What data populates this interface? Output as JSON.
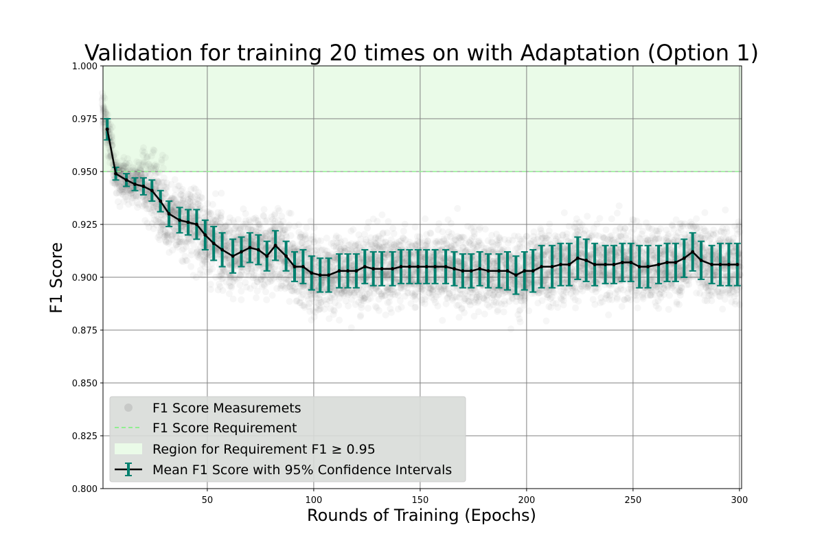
{
  "chart_data": {
    "type": "line",
    "title": "Validation for training 20 times on with Adaptation (Option 1)",
    "xlabel": "Rounds of Training (Epochs)",
    "ylabel": "F1 Score",
    "xlim": [
      1,
      301
    ],
    "ylim": [
      0.8,
      1.0
    ],
    "x_ticks": [
      50,
      100,
      150,
      200,
      250,
      300
    ],
    "y_ticks": [
      0.8,
      0.825,
      0.85,
      0.875,
      0.9,
      0.925,
      0.95,
      0.975,
      1.0
    ],
    "x_tick_labels": [
      "50",
      "100",
      "150",
      "200",
      "250",
      "300"
    ],
    "y_tick_labels": [
      "0.800",
      "0.825",
      "0.850",
      "0.875",
      "0.900",
      "0.925",
      "0.950",
      "0.975",
      "1.000"
    ],
    "grid": true,
    "legend_placement": "lower-left",
    "requirement": {
      "threshold": 0.95,
      "region": [
        0.95,
        1.0
      ],
      "line_color": "#90ee90",
      "region_color": "#eafbe8"
    },
    "scatter": {
      "name": "F1 Score Measuremets",
      "color": "#555555",
      "per_epoch_count": 20,
      "spread": 0.012
    },
    "series": [
      {
        "name": "Mean F1 Score with 95% Confidence Intervals",
        "color": "#000000",
        "errorbar_color": "#00806e",
        "x": [
          3,
          7,
          12,
          16,
          20,
          24,
          28,
          32,
          37,
          41,
          45,
          49,
          53,
          57,
          62,
          66,
          70,
          74,
          78,
          82,
          87,
          91,
          95,
          99,
          103,
          107,
          112,
          116,
          120,
          124,
          128,
          132,
          137,
          141,
          145,
          149,
          153,
          157,
          162,
          166,
          170,
          174,
          178,
          182,
          187,
          191,
          195,
          199,
          203,
          207,
          212,
          216,
          220,
          224,
          228,
          232,
          237,
          241,
          245,
          249,
          253,
          257,
          262,
          266,
          270,
          274,
          278,
          282,
          287,
          291,
          295,
          299
        ],
        "y": [
          0.97,
          0.949,
          0.946,
          0.944,
          0.943,
          0.941,
          0.936,
          0.93,
          0.927,
          0.926,
          0.925,
          0.92,
          0.916,
          0.913,
          0.91,
          0.912,
          0.914,
          0.913,
          0.91,
          0.915,
          0.91,
          0.905,
          0.905,
          0.902,
          0.901,
          0.901,
          0.903,
          0.903,
          0.903,
          0.905,
          0.904,
          0.904,
          0.904,
          0.905,
          0.905,
          0.905,
          0.905,
          0.905,
          0.905,
          0.904,
          0.903,
          0.903,
          0.904,
          0.903,
          0.903,
          0.903,
          0.901,
          0.903,
          0.903,
          0.905,
          0.905,
          0.906,
          0.906,
          0.909,
          0.908,
          0.906,
          0.906,
          0.906,
          0.907,
          0.907,
          0.905,
          0.905,
          0.906,
          0.907,
          0.907,
          0.909,
          0.912,
          0.908,
          0.906,
          0.906,
          0.906,
          0.906
        ],
        "ci": [
          0.005,
          0.003,
          0.003,
          0.003,
          0.004,
          0.005,
          0.005,
          0.006,
          0.006,
          0.006,
          0.007,
          0.007,
          0.008,
          0.008,
          0.008,
          0.007,
          0.007,
          0.007,
          0.007,
          0.007,
          0.007,
          0.007,
          0.008,
          0.008,
          0.008,
          0.008,
          0.008,
          0.008,
          0.008,
          0.008,
          0.008,
          0.008,
          0.008,
          0.008,
          0.008,
          0.008,
          0.008,
          0.008,
          0.008,
          0.008,
          0.008,
          0.008,
          0.008,
          0.008,
          0.008,
          0.009,
          0.009,
          0.009,
          0.01,
          0.01,
          0.01,
          0.01,
          0.01,
          0.01,
          0.01,
          0.01,
          0.009,
          0.009,
          0.009,
          0.009,
          0.01,
          0.01,
          0.009,
          0.009,
          0.009,
          0.009,
          0.009,
          0.009,
          0.009,
          0.01,
          0.01,
          0.01
        ]
      }
    ],
    "legend": [
      {
        "label": "F1 Score Measuremets",
        "kind": "marker"
      },
      {
        "label": "F1 Score Requirement",
        "kind": "dashed-line"
      },
      {
        "label": "Region for Requirement F1 ≥ 0.95",
        "kind": "patch"
      },
      {
        "label": "Mean F1 Score with 95% Confidence Intervals",
        "kind": "errorbar"
      }
    ]
  }
}
